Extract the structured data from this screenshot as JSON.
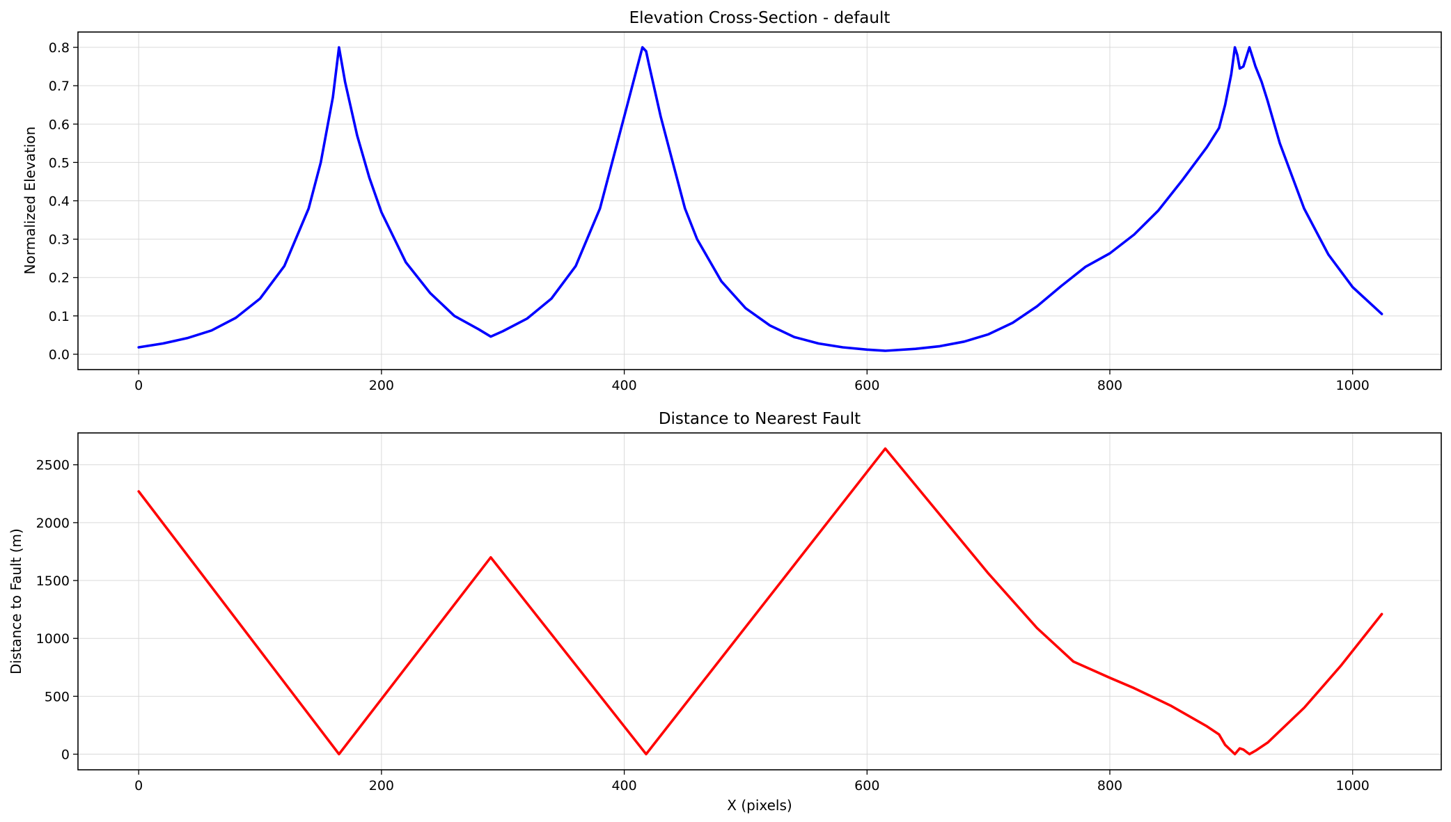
{
  "chart_data": [
    {
      "type": "line",
      "title": "Elevation Cross-Section - default",
      "xlabel": "",
      "ylabel": "Normalized Elevation",
      "xlim": [
        -50,
        1073
      ],
      "ylim": [
        -0.04,
        0.84
      ],
      "grid": true,
      "xticks": [
        0,
        200,
        400,
        600,
        800,
        1000
      ],
      "xtick_labels": [
        "0",
        "200",
        "400",
        "600",
        "800",
        "1000"
      ],
      "yticks": [
        0.0,
        0.1,
        0.2,
        0.3,
        0.4,
        0.5,
        0.6,
        0.7,
        0.8
      ],
      "ytick_labels": [
        "0.0",
        "0.1",
        "0.2",
        "0.3",
        "0.4",
        "0.5",
        "0.6",
        "0.7",
        "0.8"
      ],
      "series": [
        {
          "color": "#0000ff",
          "x": [
            0,
            20,
            40,
            60,
            80,
            100,
            120,
            140,
            150,
            160,
            165,
            170,
            180,
            190,
            200,
            220,
            240,
            260,
            280,
            290,
            300,
            320,
            340,
            360,
            380,
            400,
            410,
            415,
            418,
            420,
            425,
            430,
            440,
            450,
            460,
            480,
            500,
            520,
            540,
            560,
            580,
            600,
            615,
            640,
            660,
            680,
            700,
            720,
            740,
            760,
            780,
            800,
            820,
            840,
            860,
            880,
            890,
            895,
            900,
            903,
            905,
            907,
            910,
            913,
            915,
            918,
            920,
            925,
            930,
            940,
            960,
            980,
            1000,
            1024
          ],
          "y": [
            0.018,
            0.028,
            0.042,
            0.062,
            0.095,
            0.145,
            0.23,
            0.38,
            0.5,
            0.67,
            0.8,
            0.71,
            0.57,
            0.46,
            0.37,
            0.24,
            0.16,
            0.1,
            0.065,
            0.046,
            0.06,
            0.093,
            0.145,
            0.23,
            0.38,
            0.62,
            0.74,
            0.8,
            0.79,
            0.76,
            0.69,
            0.62,
            0.5,
            0.38,
            0.3,
            0.19,
            0.12,
            0.075,
            0.045,
            0.028,
            0.018,
            0.012,
            0.009,
            0.014,
            0.021,
            0.033,
            0.052,
            0.082,
            0.125,
            0.178,
            0.228,
            0.263,
            0.312,
            0.375,
            0.455,
            0.54,
            0.59,
            0.65,
            0.73,
            0.8,
            0.78,
            0.745,
            0.75,
            0.78,
            0.8,
            0.77,
            0.75,
            0.71,
            0.66,
            0.55,
            0.38,
            0.26,
            0.175,
            0.105
          ]
        }
      ]
    },
    {
      "type": "line",
      "title": "Distance to Nearest Fault",
      "xlabel": "X (pixels)",
      "ylabel": "Distance to Fault (m)",
      "xlim": [
        -50,
        1073
      ],
      "ylim": [
        -135,
        2775
      ],
      "grid": true,
      "xticks": [
        0,
        200,
        400,
        600,
        800,
        1000
      ],
      "xtick_labels": [
        "0",
        "200",
        "400",
        "600",
        "800",
        "1000"
      ],
      "yticks": [
        0,
        500,
        1000,
        1500,
        2000,
        2500
      ],
      "ytick_labels": [
        "0",
        "500",
        "1000",
        "1500",
        "2000",
        "2500"
      ],
      "series": [
        {
          "color": "#ff0000",
          "x": [
            0,
            165,
            290,
            418,
            615,
            700,
            740,
            770,
            800,
            820,
            850,
            880,
            890,
            895,
            903,
            907,
            910,
            915,
            920,
            930,
            960,
            990,
            1024
          ],
          "y": [
            2270,
            0,
            1700,
            0,
            2640,
            1560,
            1090,
            800,
            660,
            570,
            420,
            240,
            170,
            80,
            0,
            50,
            40,
            0,
            30,
            100,
            400,
            760,
            1210
          ]
        }
      ]
    }
  ]
}
